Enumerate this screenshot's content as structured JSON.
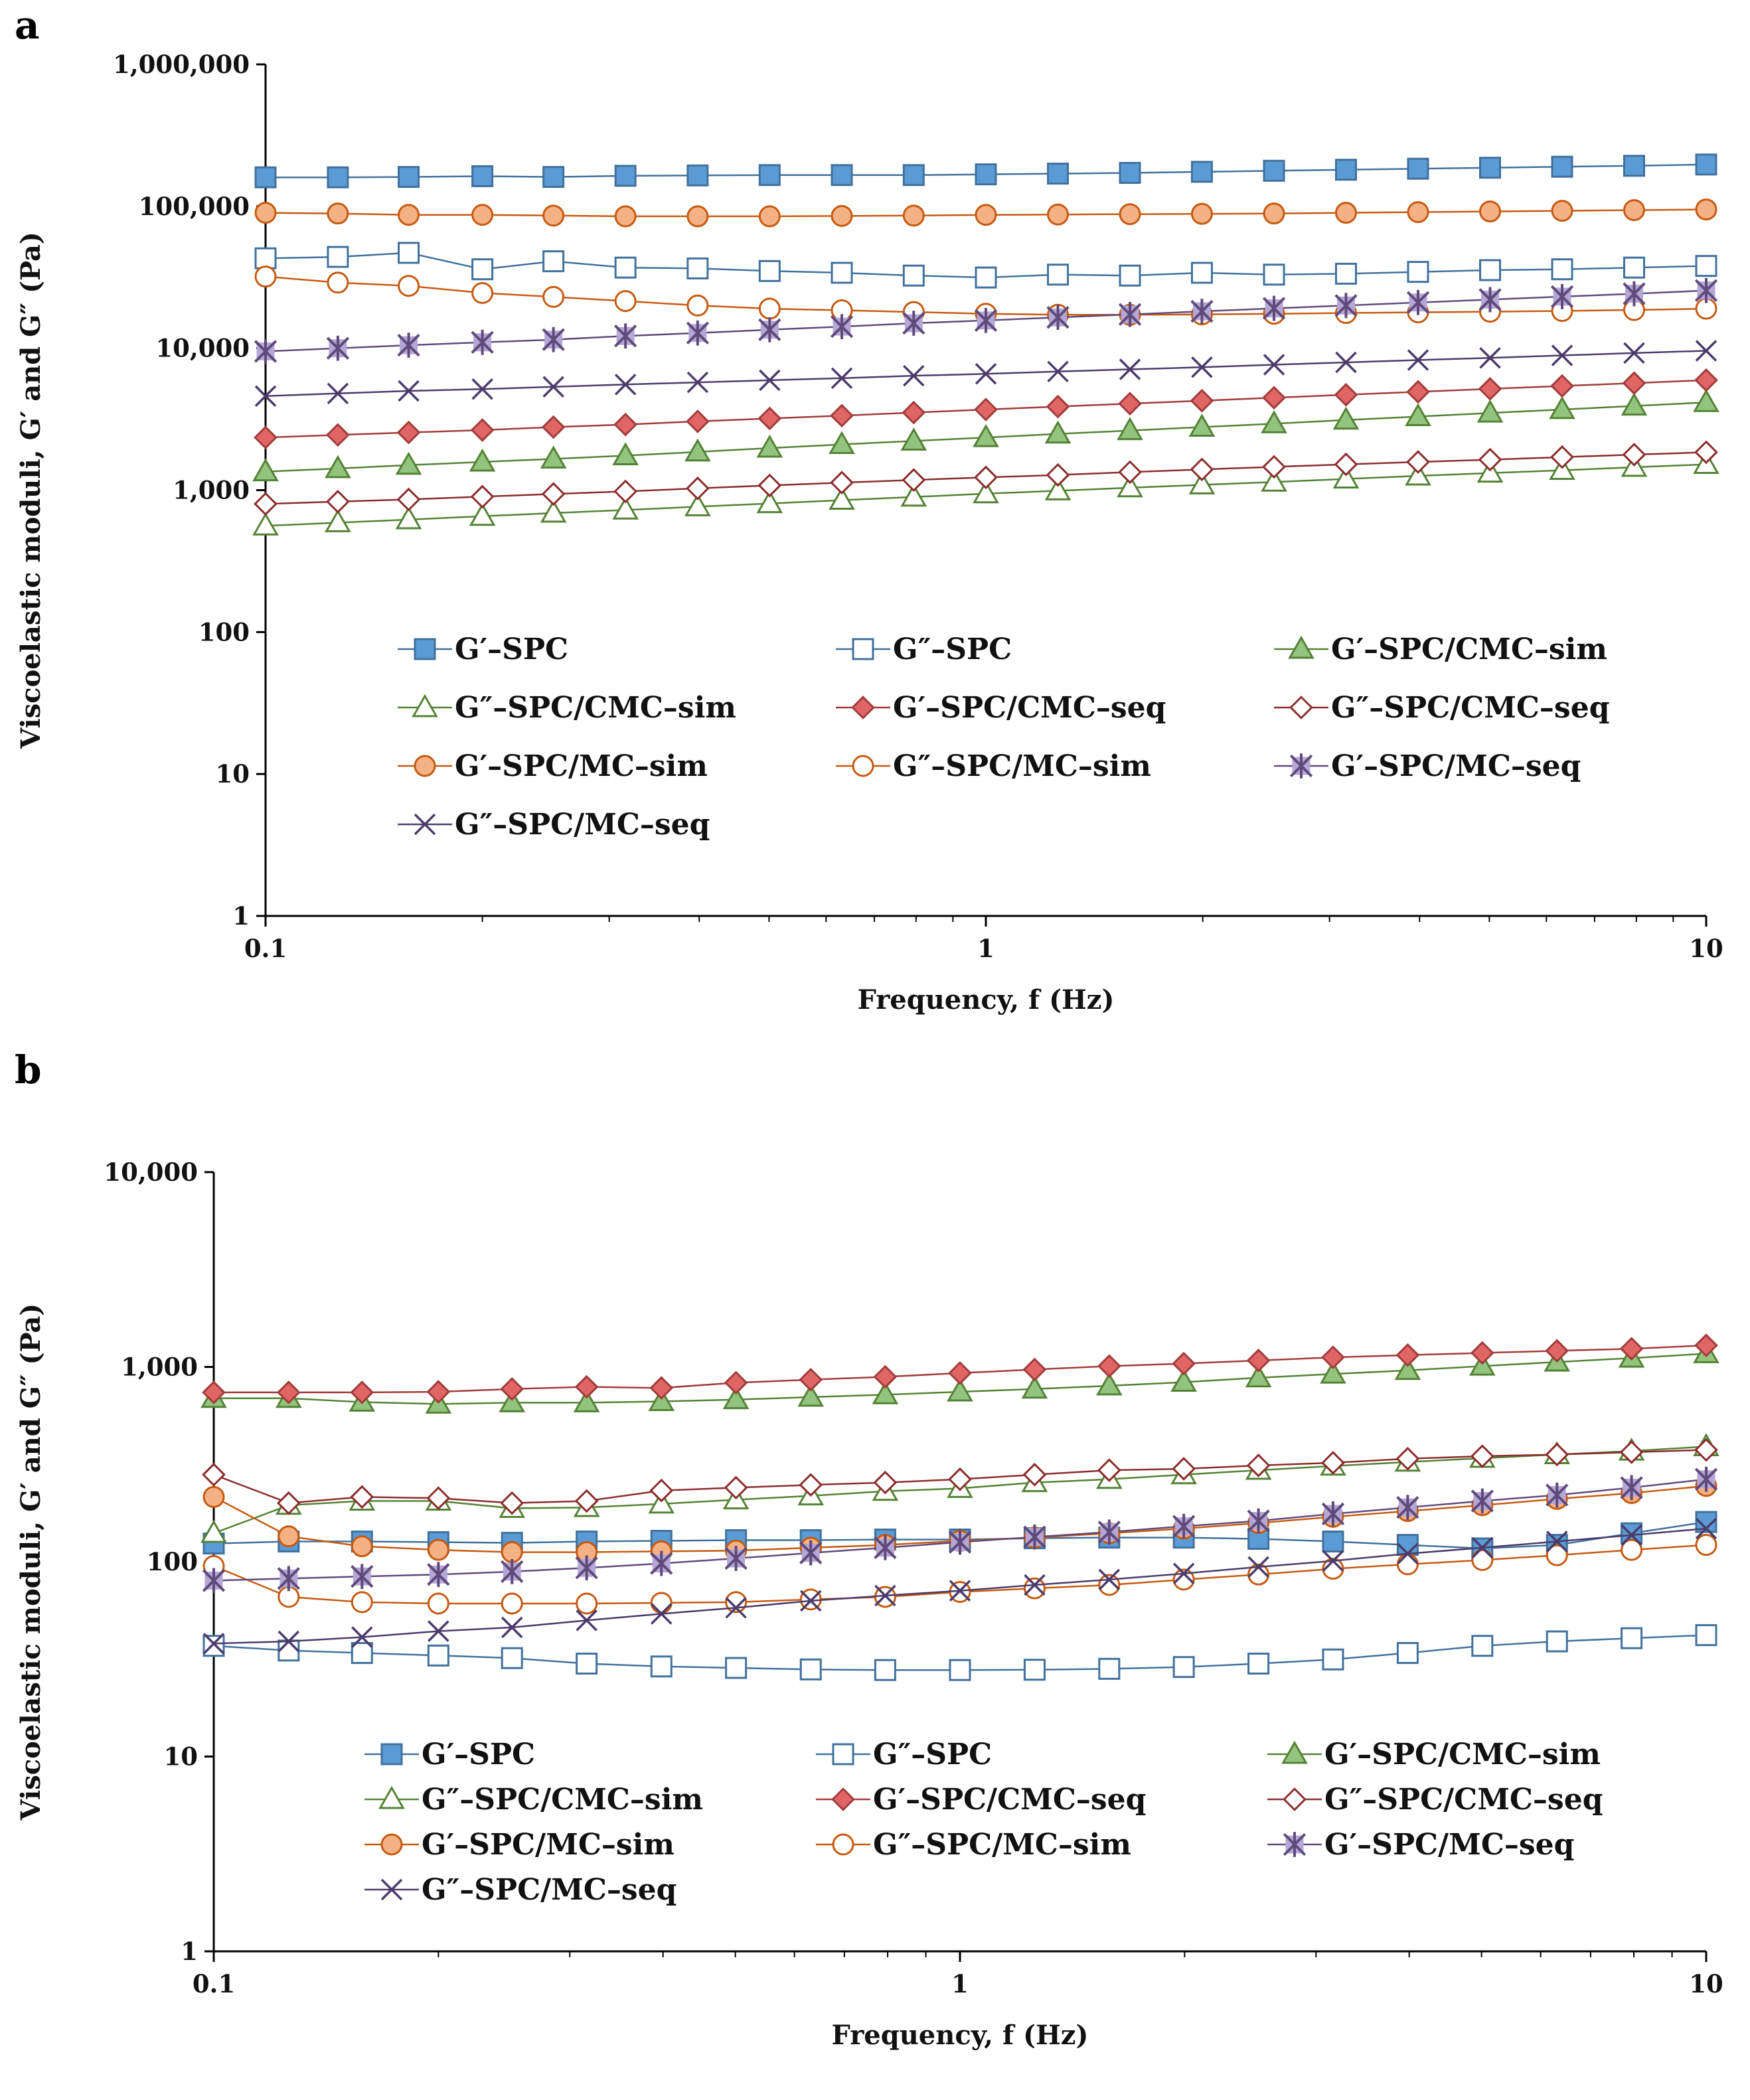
{
  "chart_data": [
    {
      "panel": "a",
      "type": "line",
      "scale": "log-log",
      "xlabel": "Frequency, f (Hz)",
      "ylabel": "Viscoelastic moduli, G′ and G″ (Pa)",
      "xlim": [
        0.1,
        10
      ],
      "ylim": [
        1,
        1000000
      ],
      "x_ticks": [
        "0.1",
        "1",
        "10"
      ],
      "y_ticks": [
        "1",
        "10",
        "100",
        "1,000",
        "10,000",
        "100,000",
        "1,000,000"
      ],
      "x": [
        0.1,
        0.126,
        0.158,
        0.2,
        0.251,
        0.316,
        0.398,
        0.501,
        0.631,
        0.794,
        1,
        1.259,
        1.585,
        1.995,
        2.512,
        3.162,
        3.981,
        5.012,
        6.31,
        7.943,
        10
      ],
      "series": [
        {
          "name": "G′–SPC",
          "color": "#41719c",
          "fill": "#5b9bd5",
          "marker": "square-filled",
          "values": [
            160000,
            160000,
            161000,
            163000,
            161000,
            164000,
            165000,
            166000,
            166000,
            166000,
            168000,
            170000,
            172000,
            175000,
            178000,
            181000,
            184000,
            187000,
            190000,
            193000,
            197000
          ]
        },
        {
          "name": "G″–SPC",
          "color": "#41719c",
          "fill": "#ffffff",
          "marker": "square-open",
          "values": [
            43000,
            44000,
            47000,
            36000,
            41000,
            37000,
            36500,
            35000,
            34000,
            32500,
            31500,
            33000,
            32500,
            34000,
            33000,
            33500,
            34500,
            35500,
            36000,
            37000,
            38000
          ]
        },
        {
          "name": "G′–SPC/CMC–sim",
          "color": "#548235",
          "fill": "#92c47d",
          "marker": "triangle-filled",
          "values": [
            1350,
            1420,
            1500,
            1580,
            1660,
            1750,
            1860,
            1980,
            2100,
            2220,
            2350,
            2490,
            2630,
            2780,
            2940,
            3120,
            3300,
            3500,
            3700,
            3920,
            4150
          ]
        },
        {
          "name": "G″–SPC/CMC–sim",
          "color": "#548235",
          "fill": "#ffffff",
          "marker": "triangle-open",
          "values": [
            560,
            590,
            620,
            655,
            690,
            725,
            765,
            805,
            850,
            895,
            945,
            990,
            1040,
            1090,
            1140,
            1200,
            1260,
            1320,
            1380,
            1450,
            1520
          ]
        },
        {
          "name": "G′–SPC/CMC–seq",
          "color": "#a23b3b",
          "fill": "#e06666",
          "marker": "diamond-filled",
          "values": [
            2350,
            2450,
            2550,
            2650,
            2780,
            2900,
            3050,
            3200,
            3350,
            3520,
            3700,
            3880,
            4070,
            4270,
            4480,
            4700,
            4930,
            5170,
            5420,
            5680,
            5960
          ]
        },
        {
          "name": "G″–SPC/CMC–seq",
          "color": "#8b2c2c",
          "fill": "#ffffff",
          "marker": "diamond-open",
          "values": [
            800,
            830,
            860,
            900,
            940,
            980,
            1030,
            1080,
            1130,
            1180,
            1230,
            1280,
            1340,
            1400,
            1460,
            1520,
            1580,
            1640,
            1710,
            1780,
            1850
          ]
        },
        {
          "name": "G′–SPC/MC–sim",
          "color": "#c55a11",
          "fill": "#f4b183",
          "marker": "circle-filled",
          "values": [
            90000,
            89000,
            87000,
            87000,
            86000,
            85000,
            85000,
            85000,
            85500,
            86000,
            87000,
            87500,
            88000,
            88500,
            89000,
            90000,
            91000,
            92000,
            93000,
            94000,
            95000
          ]
        },
        {
          "name": "G″–SPC/MC–sim",
          "color": "#c55a11",
          "fill": "#ffffff",
          "marker": "circle-open",
          "values": [
            32000,
            29000,
            27500,
            24500,
            23000,
            21500,
            20000,
            19000,
            18500,
            18000,
            17500,
            17200,
            17200,
            17300,
            17500,
            17700,
            17900,
            18100,
            18300,
            18600,
            19000
          ]
        },
        {
          "name": "G′–SPC/MC–seq",
          "color": "#604a7b",
          "fill": "#b4a7d6",
          "marker": "asterisk-box",
          "values": [
            9500,
            10000,
            10500,
            11000,
            11500,
            12200,
            12800,
            13500,
            14200,
            15000,
            15700,
            16500,
            17300,
            18200,
            19100,
            20000,
            21000,
            22000,
            23100,
            24200,
            25500
          ]
        },
        {
          "name": "G″–SPC/MC–seq",
          "color": "#4b3b6b",
          "fill": "none",
          "marker": "x",
          "values": [
            4600,
            4800,
            5000,
            5150,
            5350,
            5550,
            5750,
            5950,
            6150,
            6400,
            6600,
            6850,
            7100,
            7350,
            7650,
            7950,
            8250,
            8550,
            8900,
            9250,
            9600
          ]
        }
      ]
    },
    {
      "panel": "b",
      "type": "line",
      "scale": "log-log",
      "xlabel": "Frequency, f (Hz)",
      "ylabel": "Viscoelastic moduli, G′ and G″ (Pa)",
      "xlim": [
        0.1,
        10
      ],
      "ylim": [
        1,
        10000
      ],
      "x_ticks": [
        "0.1",
        "1",
        "10"
      ],
      "y_ticks": [
        "1",
        "10",
        "100",
        "1,000",
        "10,000"
      ],
      "x": [
        0.1,
        0.126,
        0.158,
        0.2,
        0.251,
        0.316,
        0.398,
        0.501,
        0.631,
        0.794,
        1,
        1.259,
        1.585,
        1.995,
        2.512,
        3.162,
        3.981,
        5.012,
        6.31,
        7.943,
        10
      ],
      "series": [
        {
          "name": "G′–SPC",
          "color": "#41719c",
          "fill": "#5b9bd5",
          "marker": "square-filled",
          "values": [
            124,
            127,
            127,
            126,
            125,
            127,
            128,
            129,
            129,
            130,
            130,
            132,
            133,
            133,
            131,
            127,
            122,
            117,
            122,
            140,
            160
          ]
        },
        {
          "name": "G″–SPC",
          "color": "#41719c",
          "fill": "#ffffff",
          "marker": "square-open",
          "values": [
            37,
            35,
            34,
            33,
            32,
            30,
            29,
            28.5,
            28,
            27.8,
            27.8,
            27.9,
            28.2,
            28.8,
            30,
            31.5,
            34,
            37,
            39,
            40.5,
            42
          ]
        },
        {
          "name": "G′–SPC/CMC–sim",
          "color": "#548235",
          "fill": "#92c47d",
          "marker": "triangle-filled",
          "values": [
            690,
            690,
            660,
            645,
            655,
            655,
            665,
            680,
            700,
            720,
            745,
            770,
            800,
            835,
            880,
            920,
            960,
            1010,
            1060,
            1110,
            1170
          ]
        },
        {
          "name": "G″–SPC/CMC–sim",
          "color": "#548235",
          "fill": "#ffffff",
          "marker": "triangle-open",
          "values": [
            140,
            195,
            205,
            205,
            188,
            190,
            198,
            208,
            218,
            230,
            238,
            255,
            265,
            280,
            295,
            310,
            325,
            340,
            355,
            370,
            390
          ]
        },
        {
          "name": "G′–SPC/CMC–seq",
          "color": "#a23b3b",
          "fill": "#e06666",
          "marker": "diamond-filled",
          "values": [
            740,
            740,
            740,
            745,
            770,
            790,
            780,
            830,
            860,
            890,
            930,
            970,
            1010,
            1040,
            1080,
            1120,
            1150,
            1180,
            1210,
            1240,
            1290
          ]
        },
        {
          "name": "G″–SPC/CMC–seq",
          "color": "#8b2c2c",
          "fill": "#ffffff",
          "marker": "diamond-open",
          "values": [
            280,
            200,
            215,
            212,
            200,
            205,
            232,
            240,
            248,
            255,
            265,
            280,
            295,
            300,
            312,
            322,
            338,
            348,
            355,
            365,
            375
          ]
        },
        {
          "name": "G′–SPC/MC–sim",
          "color": "#c55a11",
          "fill": "#f4b183",
          "marker": "circle-filled",
          "values": [
            215,
            135,
            120,
            115,
            112,
            112,
            113,
            114,
            118,
            122,
            128,
            133,
            140,
            148,
            158,
            170,
            182,
            195,
            210,
            225,
            245
          ]
        },
        {
          "name": "G″–SPC/MC–sim",
          "color": "#c55a11",
          "fill": "#ffffff",
          "marker": "circle-open",
          "values": [
            95,
            66,
            62,
            61,
            61,
            61,
            61.5,
            62,
            64,
            66,
            70,
            73,
            76,
            81,
            86,
            92,
            97,
            102,
            108,
            115,
            122
          ]
        },
        {
          "name": "G′–SPC/MC–seq",
          "color": "#604a7b",
          "fill": "#b4a7d6",
          "marker": "asterisk-box",
          "values": [
            80,
            82,
            84,
            86,
            89,
            93,
            98,
            104,
            111,
            118,
            126,
            134,
            142,
            152,
            162,
            176,
            190,
            205,
            220,
            240,
            265
          ]
        },
        {
          "name": "G″–SPC/MC–seq",
          "color": "#4b3b6b",
          "fill": "none",
          "marker": "x",
          "values": [
            38,
            39,
            41,
            44,
            46,
            50,
            54,
            58,
            63,
            67,
            71,
            76,
            81,
            87,
            94,
            101,
            110,
            118,
            127,
            137,
            148
          ]
        }
      ]
    }
  ]
}
